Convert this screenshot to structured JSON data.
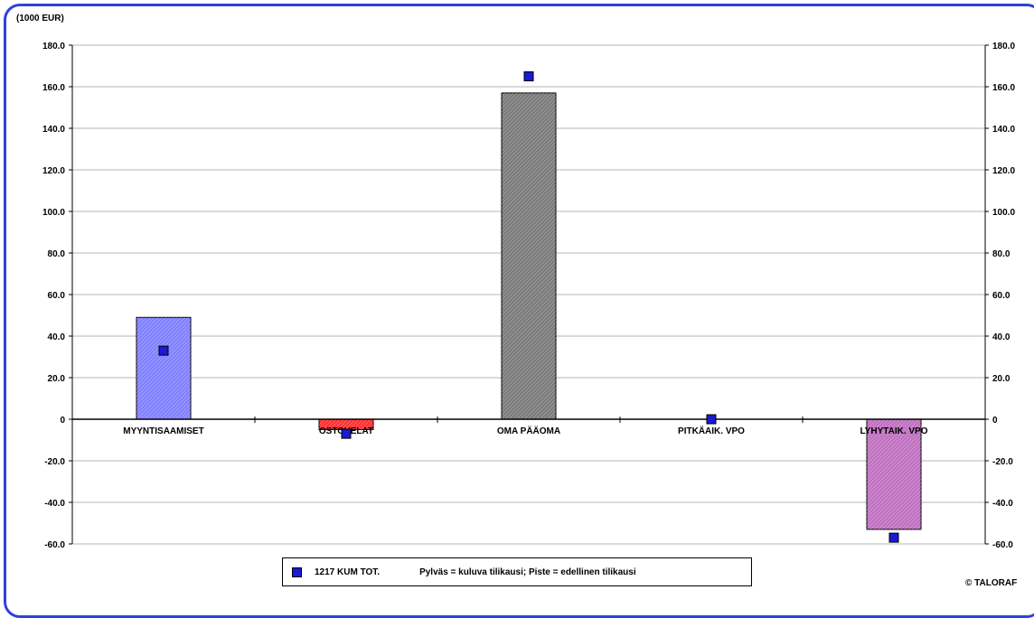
{
  "chart_data": {
    "type": "bar",
    "unit_label": "(1000 EUR)",
    "categories": [
      "MYYNTISAAMISET",
      "OSTOVELAT",
      "OMA PÄÄOMA",
      "PITKÄAIK. VPO",
      "LYHYTAIK. VPO"
    ],
    "series": [
      {
        "name": "Pylväs = kuluva tilikausi",
        "kind": "bar",
        "values": [
          49.0,
          -5.0,
          157.0,
          0.0,
          -53.0
        ]
      },
      {
        "name": "Piste = edellinen tilikausi",
        "kind": "point",
        "values": [
          33.0,
          -7.0,
          165.0,
          0.0,
          -57.0
        ]
      }
    ],
    "bar_colors": [
      "#8080ff",
      "#ff3030",
      "#7a7a7a",
      "#ffffff",
      "#c070c0"
    ],
    "point_color": "#1a1ad6",
    "ylim": [
      -60,
      180
    ],
    "yticks": [
      "180.0",
      "160.0",
      "140.0",
      "120.0",
      "100.0",
      "80.0",
      "60.0",
      "40.0",
      "20.0",
      "0",
      "-20.0",
      "-40.0",
      "-60.0"
    ],
    "ytick_values": [
      180,
      160,
      140,
      120,
      100,
      80,
      60,
      40,
      20,
      0,
      -20,
      -40,
      -60
    ],
    "grid": true,
    "legend": {
      "position": "bottom",
      "series_label": "1217  KUM TOT.",
      "description": "Pylväs = kuluva tilikausi; Piste = edellinen tilikausi"
    },
    "credit": "© TALORAF"
  }
}
